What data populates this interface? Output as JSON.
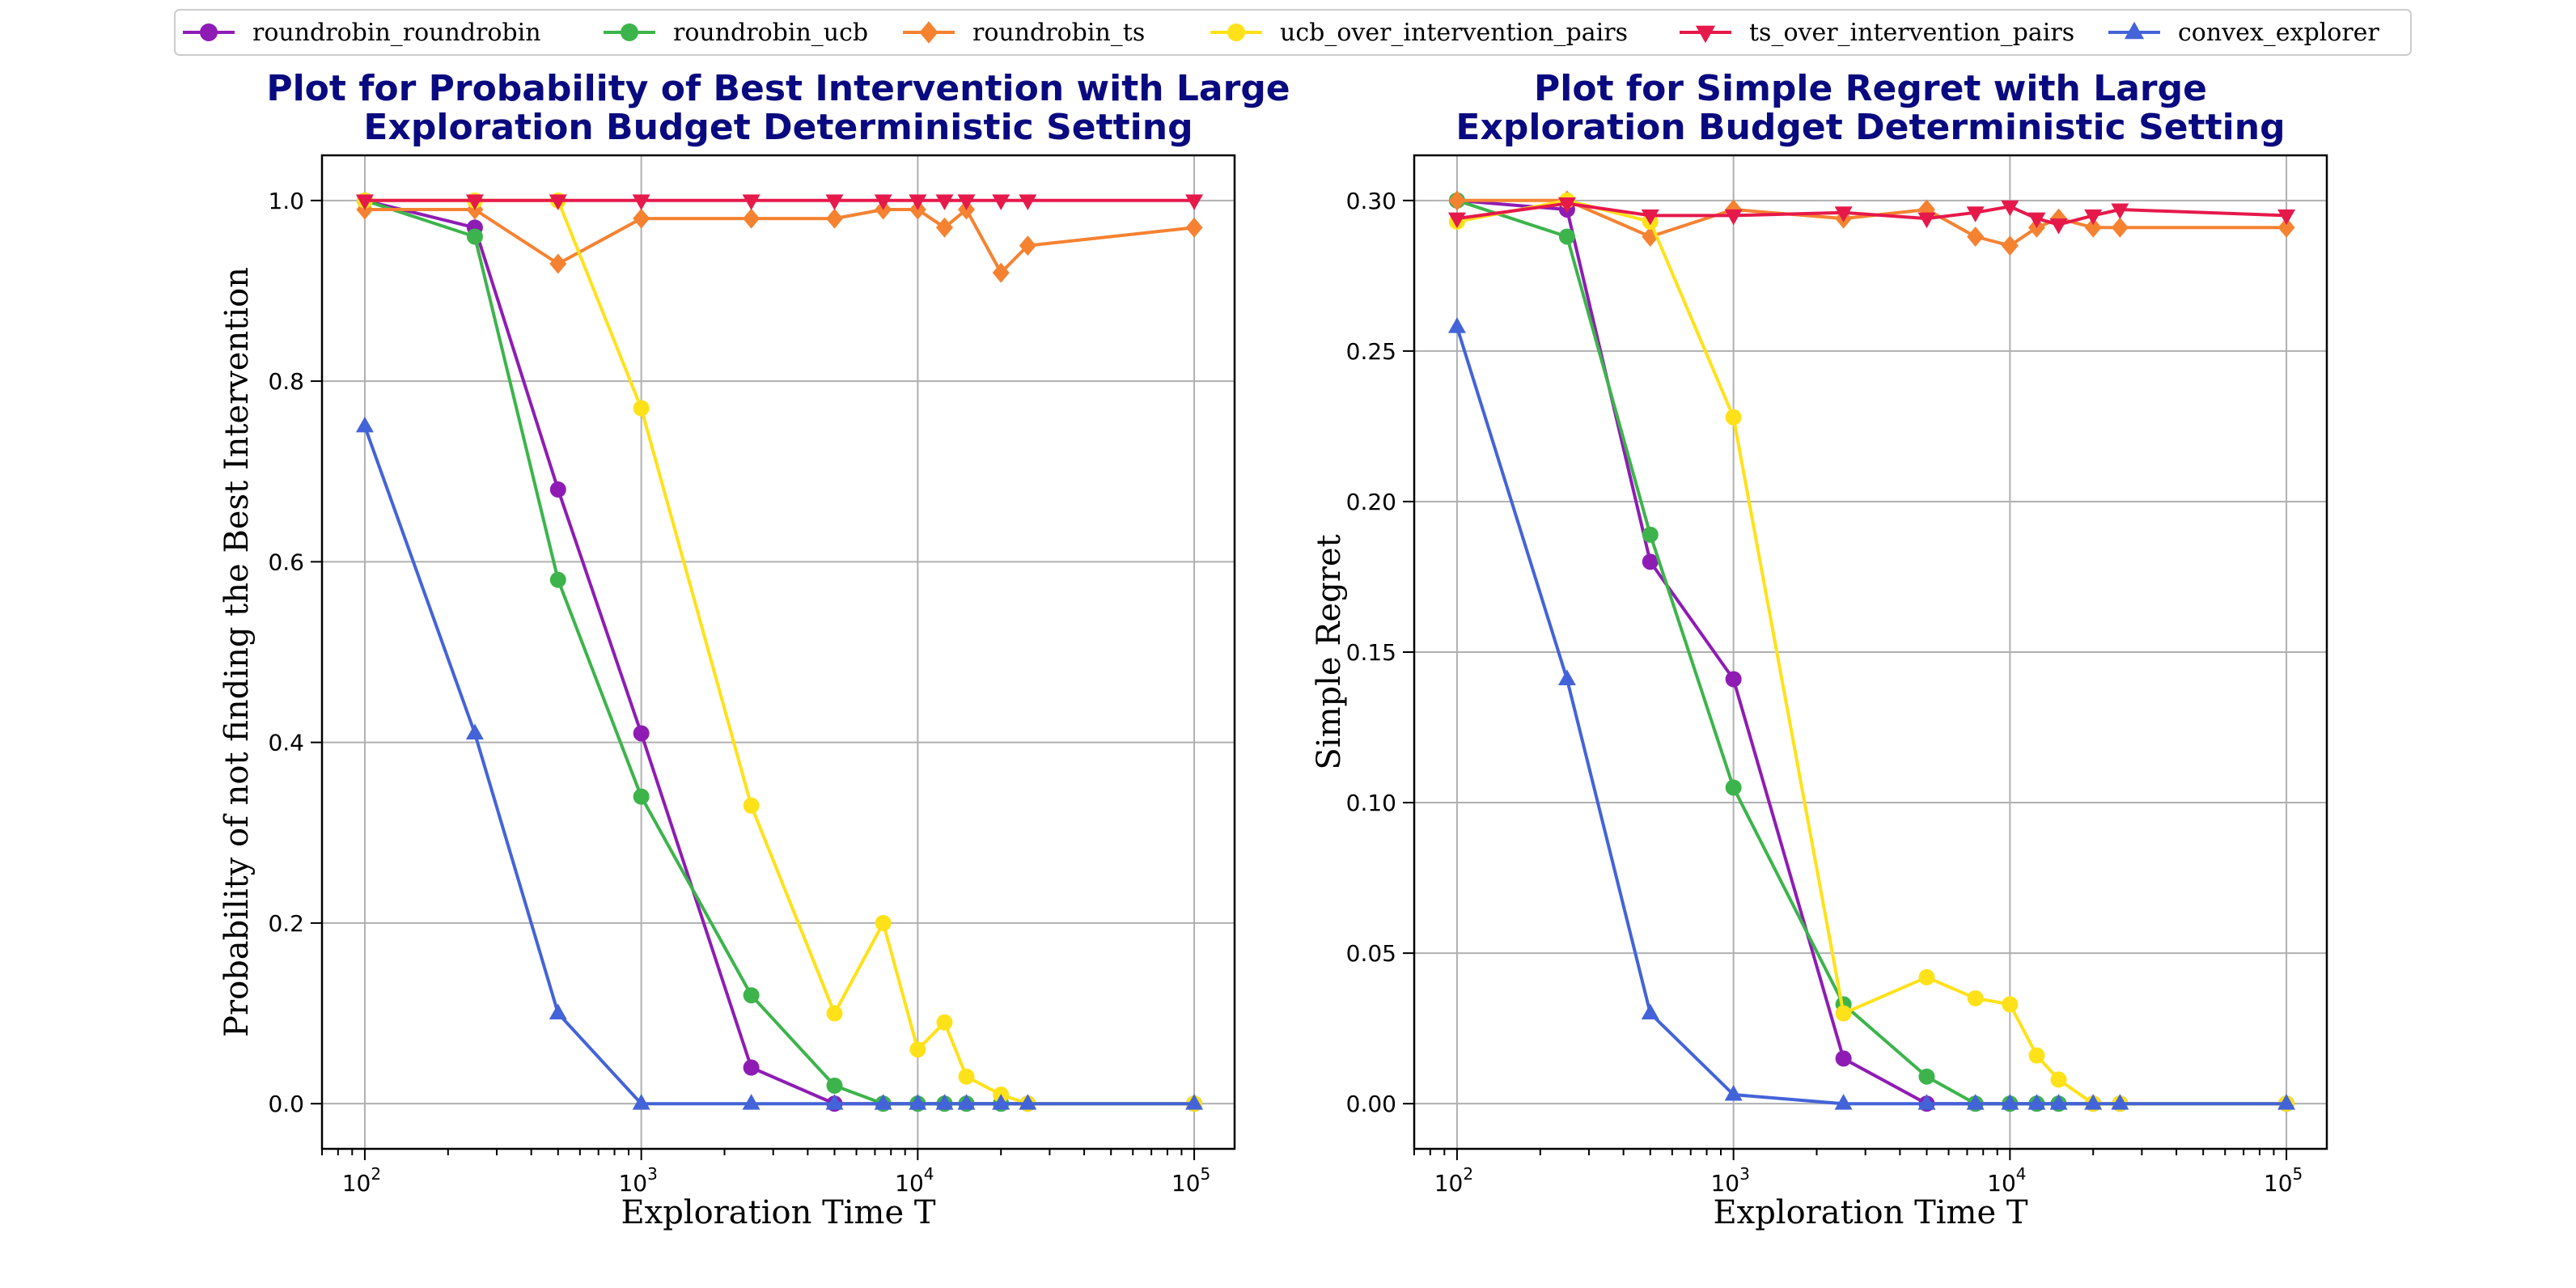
{
  "legend": [
    {
      "name": "roundrobin_roundrobin",
      "color": "#8e1cb4",
      "marker": "circle"
    },
    {
      "name": "roundrobin_ucb",
      "color": "#3cb44b",
      "marker": "circle"
    },
    {
      "name": "roundrobin_ts",
      "color": "#f58231",
      "marker": "diamond"
    },
    {
      "name": "ucb_over_intervention_pairs",
      "color": "#ffe119",
      "marker": "circle"
    },
    {
      "name": "ts_over_intervention_pairs",
      "color": "#e6194b",
      "marker": "triangle-down"
    },
    {
      "name": "convex_explorer",
      "color": "#4363d8",
      "marker": "triangle-up"
    }
  ],
  "chart_data": [
    {
      "type": "line",
      "title_lines": [
        "Plot for Probability of Best Intervention with Large",
        "Exploration Budget Deterministic Setting"
      ],
      "xlabel": "Exploration Time T",
      "ylabel": "Probability of not finding the Best Intervention",
      "xscale": "log",
      "xlim": [
        70,
        140000
      ],
      "ylim": [
        -0.05,
        1.05
      ],
      "yticks": [
        0.0,
        0.2,
        0.4,
        0.6,
        0.8,
        1.0
      ],
      "ytick_labels": [
        "0.0",
        "0.2",
        "0.4",
        "0.6",
        "0.8",
        "1.0"
      ],
      "xticks": [
        100,
        1000,
        10000,
        100000
      ],
      "xtick_bases": [
        "10",
        "10",
        "10",
        "10"
      ],
      "xtick_exps": [
        "2",
        "3",
        "4",
        "5"
      ],
      "grid": true,
      "series": [
        {
          "name": "roundrobin_roundrobin",
          "color": "#8e1cb4",
          "marker": "circle",
          "x": [
            100,
            250,
            500,
            1000,
            2500,
            5000,
            7500,
            10000,
            12500,
            15000,
            20000,
            25000,
            100000
          ],
          "y": [
            1.0,
            0.97,
            0.68,
            0.41,
            0.04,
            0.0,
            0.0,
            0.0,
            0.0,
            0.0,
            0.0,
            0.0,
            0.0
          ]
        },
        {
          "name": "roundrobin_ucb",
          "color": "#3cb44b",
          "marker": "circle",
          "x": [
            100,
            250,
            500,
            1000,
            2500,
            5000,
            7500,
            10000,
            12500,
            15000,
            20000,
            25000,
            100000
          ],
          "y": [
            1.0,
            0.96,
            0.58,
            0.34,
            0.12,
            0.02,
            0.0,
            0.0,
            0.0,
            0.0,
            0.0,
            0.0,
            0.0
          ]
        },
        {
          "name": "roundrobin_ts",
          "color": "#f58231",
          "marker": "diamond",
          "x": [
            100,
            250,
            500,
            1000,
            2500,
            5000,
            7500,
            10000,
            12500,
            15000,
            20000,
            25000,
            100000
          ],
          "y": [
            0.99,
            0.99,
            0.93,
            0.98,
            0.98,
            0.98,
            0.99,
            0.99,
            0.97,
            0.99,
            0.92,
            0.95,
            0.97
          ]
        },
        {
          "name": "ucb_over_intervention_pairs",
          "color": "#ffe119",
          "marker": "circle",
          "x": [
            100,
            250,
            500,
            1000,
            2500,
            5000,
            7500,
            10000,
            12500,
            15000,
            20000,
            25000,
            100000
          ],
          "y": [
            1.0,
            1.0,
            1.0,
            0.77,
            0.33,
            0.1,
            0.2,
            0.06,
            0.09,
            0.03,
            0.01,
            0.0,
            0.0
          ]
        },
        {
          "name": "ts_over_intervention_pairs",
          "color": "#e6194b",
          "marker": "triangle-down",
          "x": [
            100,
            250,
            500,
            1000,
            2500,
            5000,
            7500,
            10000,
            12500,
            15000,
            20000,
            25000,
            100000
          ],
          "y": [
            1.0,
            1.0,
            1.0,
            1.0,
            1.0,
            1.0,
            1.0,
            1.0,
            1.0,
            1.0,
            1.0,
            1.0,
            1.0
          ]
        },
        {
          "name": "convex_explorer",
          "color": "#4363d8",
          "marker": "triangle-up",
          "x": [
            100,
            250,
            500,
            1000,
            2500,
            5000,
            7500,
            10000,
            12500,
            15000,
            20000,
            25000,
            100000
          ],
          "y": [
            0.75,
            0.41,
            0.1,
            0.0,
            0.0,
            0.0,
            0.0,
            0.0,
            0.0,
            0.0,
            0.0,
            0.0,
            0.0
          ]
        }
      ]
    },
    {
      "type": "line",
      "title_lines": [
        "Plot for Simple Regret with Large",
        "Exploration Budget Deterministic Setting"
      ],
      "xlabel": "Exploration Time T",
      "ylabel": "Simple Regret",
      "xscale": "log",
      "xlim": [
        70,
        140000
      ],
      "ylim": [
        -0.015,
        0.315
      ],
      "yticks": [
        0.0,
        0.05,
        0.1,
        0.15,
        0.2,
        0.25,
        0.3
      ],
      "ytick_labels": [
        "0.00",
        "0.05",
        "0.10",
        "0.15",
        "0.20",
        "0.25",
        "0.30"
      ],
      "xticks": [
        100,
        1000,
        10000,
        100000
      ],
      "xtick_bases": [
        "10",
        "10",
        "10",
        "10"
      ],
      "xtick_exps": [
        "2",
        "3",
        "4",
        "5"
      ],
      "grid": true,
      "series": [
        {
          "name": "roundrobin_roundrobin",
          "color": "#8e1cb4",
          "marker": "circle",
          "x": [
            100,
            250,
            500,
            1000,
            2500,
            5000,
            7500,
            10000,
            12500,
            15000,
            20000,
            25000,
            100000
          ],
          "y": [
            0.3,
            0.297,
            0.18,
            0.141,
            0.015,
            0.0,
            0.0,
            0.0,
            0.0,
            0.0,
            0.0,
            0.0,
            0.0
          ]
        },
        {
          "name": "roundrobin_ucb",
          "color": "#3cb44b",
          "marker": "circle",
          "x": [
            100,
            250,
            500,
            1000,
            2500,
            5000,
            7500,
            10000,
            12500,
            15000,
            20000,
            25000,
            100000
          ],
          "y": [
            0.3,
            0.288,
            0.189,
            0.105,
            0.033,
            0.009,
            0.0,
            0.0,
            0.0,
            0.0,
            0.0,
            0.0,
            0.0
          ]
        },
        {
          "name": "roundrobin_ts",
          "color": "#f58231",
          "marker": "diamond",
          "x": [
            100,
            250,
            500,
            1000,
            2500,
            5000,
            7500,
            10000,
            12500,
            15000,
            20000,
            25000,
            100000
          ],
          "y": [
            0.3,
            0.3,
            0.288,
            0.297,
            0.294,
            0.297,
            0.288,
            0.285,
            0.291,
            0.294,
            0.291,
            0.291,
            0.291
          ]
        },
        {
          "name": "ucb_over_intervention_pairs",
          "color": "#ffe119",
          "marker": "circle",
          "x": [
            100,
            250,
            500,
            1000,
            2500,
            5000,
            7500,
            10000,
            12500,
            15000,
            20000,
            25000,
            100000
          ],
          "y": [
            0.293,
            0.3,
            0.293,
            0.228,
            0.03,
            0.042,
            0.035,
            0.033,
            0.016,
            0.008,
            0.0,
            0.0,
            0.0
          ]
        },
        {
          "name": "ts_over_intervention_pairs",
          "color": "#e6194b",
          "marker": "triangle-down",
          "x": [
            100,
            250,
            500,
            1000,
            2500,
            5000,
            7500,
            10000,
            12500,
            15000,
            20000,
            25000,
            100000
          ],
          "y": [
            0.294,
            0.299,
            0.295,
            0.295,
            0.296,
            0.294,
            0.296,
            0.298,
            0.294,
            0.292,
            0.295,
            0.297,
            0.295
          ]
        },
        {
          "name": "convex_explorer",
          "color": "#4363d8",
          "marker": "triangle-up",
          "x": [
            100,
            250,
            500,
            1000,
            2500,
            5000,
            7500,
            10000,
            12500,
            15000,
            20000,
            25000,
            100000
          ],
          "y": [
            0.258,
            0.141,
            0.03,
            0.003,
            0.0,
            0.0,
            0.0,
            0.0,
            0.0,
            0.0,
            0.0,
            0.0,
            0.0
          ]
        }
      ]
    }
  ]
}
